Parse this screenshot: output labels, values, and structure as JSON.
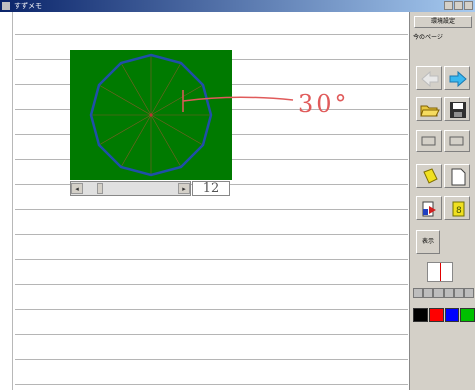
{
  "window": {
    "title": "すずメモ"
  },
  "sidebar": {
    "env_label": "環境設定",
    "page_label": "今のページ",
    "display_label": "表示"
  },
  "widget": {
    "segment_count": "12",
    "angle_text": "30°"
  },
  "palette": {
    "colors": [
      "#000000",
      "#ff0000",
      "#0000ff",
      "#00c000"
    ]
  },
  "icons": [
    "arrow-left-icon",
    "arrow-right-icon",
    "open-folder-icon",
    "save-disk-icon",
    "copy-icon",
    "paste-icon",
    "highlighter-icon",
    "new-page-icon",
    "recycle-icon",
    "document-icon"
  ]
}
